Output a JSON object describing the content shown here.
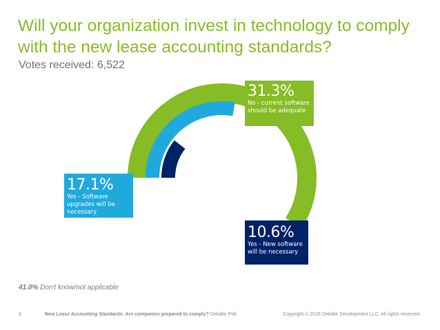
{
  "title": "Will your organization invest in technology to comply with the new lease accounting standards?",
  "votes": "Votes received: 6,522",
  "chart_data": {
    "type": "pie",
    "title": "Will your organization invest in technology to comply with the new lease accounting standards?",
    "subtitle": "Votes received: 6,522",
    "series": [
      {
        "name": "No - current software should be adequate",
        "value": 31.3,
        "label": "31.3%",
        "color": "#86BC25"
      },
      {
        "name": "Yes - Software upgrades will be necessary",
        "value": 17.1,
        "label": "17.1%",
        "color": "#1FA9DD"
      },
      {
        "name": "Yes - New software will be necessary",
        "value": 10.6,
        "label": "10.6%",
        "color": "#012169"
      },
      {
        "name": "Don't know/not applicable",
        "value": 41.0,
        "label": "41.0%",
        "color": null
      }
    ]
  },
  "callouts": [
    {
      "pct": "31.3%",
      "desc": "No - current software should be adequate"
    },
    {
      "pct": "17.1%",
      "desc": "Yes - Software upgrades will be necessary"
    },
    {
      "pct": "10.6%",
      "desc": "Yes - New software will be necessary"
    }
  ],
  "footnote": {
    "pct": "41.0%",
    "text": "Don't know/not applicable"
  },
  "footer": {
    "page": "6",
    "doc_title": "New Lease Accounting Standards: Are companies prepared to comply?",
    "source": "Deloitte Poll",
    "copyright": "Copyright © 2016 Deloitte Development LLC. All rights reserved."
  }
}
